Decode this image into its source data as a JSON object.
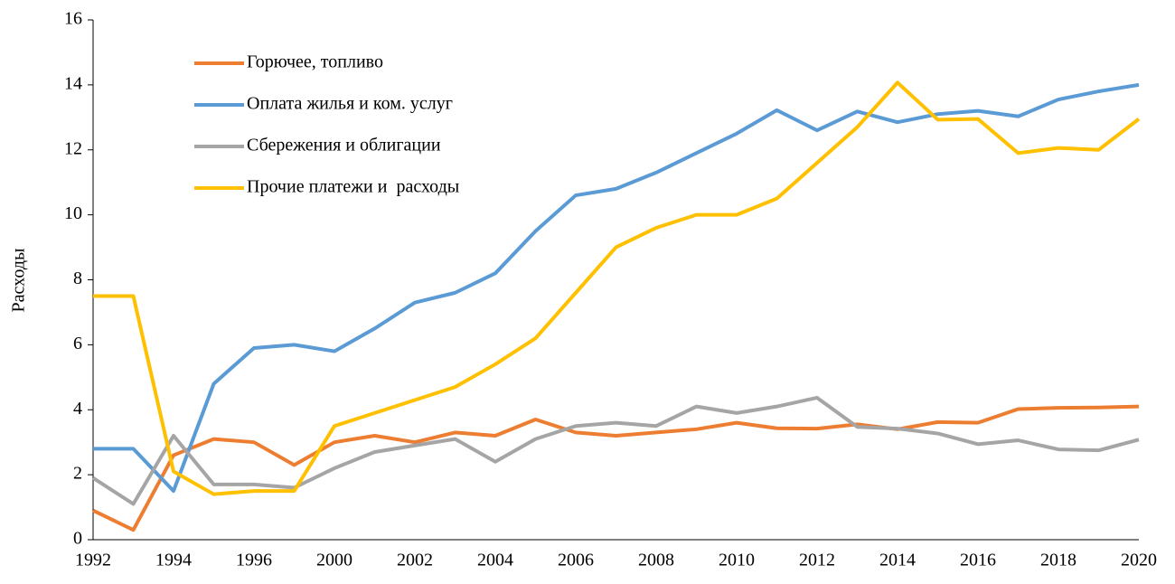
{
  "chart_data": {
    "type": "line",
    "y_label": "Расходы",
    "categories": [
      "1992",
      null,
      "1994",
      null,
      "1996",
      null,
      "2000",
      null,
      "2002",
      null,
      "2004",
      null,
      "2006",
      null,
      "2008",
      null,
      "2010",
      null,
      "2012",
      null,
      "2014",
      null,
      "2016",
      null,
      "2018",
      null,
      "2020"
    ],
    "series": [
      {
        "name": "Горючее, топливо",
        "color": "#ED7D31",
        "values": [
          0.9,
          0.3,
          2.6,
          3.1,
          3.0,
          2.3,
          3.0,
          3.2,
          3.0,
          3.3,
          3.2,
          3.7,
          3.3,
          3.2,
          3.3,
          3.4,
          3.6,
          3.43,
          3.42,
          3.55,
          3.4,
          3.62,
          3.6,
          4.02,
          4.06,
          4.07,
          4.1
        ]
      },
      {
        "name": "Оплата жилья и ком. услуг",
        "color": "#5B9BD5",
        "values": [
          2.8,
          2.8,
          1.5,
          4.8,
          5.9,
          6.0,
          5.8,
          6.5,
          7.3,
          7.6,
          8.2,
          9.5,
          10.6,
          10.8,
          11.3,
          11.9,
          12.5,
          13.22,
          12.6,
          13.18,
          12.85,
          13.1,
          13.2,
          13.03,
          13.55,
          13.8,
          14.0
        ]
      },
      {
        "name": "Сбережения и облигации",
        "color": "#A5A5A5",
        "values": [
          1.9,
          1.1,
          3.2,
          1.7,
          1.7,
          1.6,
          2.2,
          2.7,
          2.9,
          3.1,
          2.4,
          3.1,
          3.5,
          3.6,
          3.5,
          4.1,
          3.9,
          4.1,
          4.37,
          3.47,
          3.42,
          3.27,
          2.94,
          3.06,
          2.78,
          2.75,
          3.08
        ]
      },
      {
        "name": "Прочие платежи и  расходы",
        "color": "#FFC000",
        "values": [
          7.5,
          7.5,
          2.1,
          1.4,
          1.5,
          1.5,
          3.5,
          3.9,
          4.3,
          4.7,
          5.4,
          6.2,
          7.6,
          9.0,
          9.6,
          10.0,
          10.0,
          10.5,
          11.6,
          12.7,
          14.07,
          12.93,
          12.95,
          11.9,
          12.06,
          12.0,
          12.95
        ]
      }
    ],
    "ylim": [
      0,
      16
    ],
    "yticks": [
      0,
      2,
      4,
      6,
      8,
      10,
      12,
      14,
      16
    ],
    "grid": false,
    "legend": "top-left"
  }
}
